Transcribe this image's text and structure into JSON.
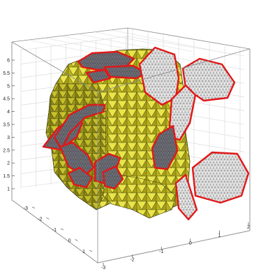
{
  "figure": {
    "colors": {
      "background": "#ffffff",
      "box_edge": "#8a8a8a",
      "grid": "#d6d6d6",
      "mesh_fill_light": "#e6e23a",
      "mesh_fill_mid": "#cfc72a",
      "mesh_fill_dark": "#8f8a17",
      "mesh_edge": "#3a3a10",
      "grain_fill_light": "#eeeeee",
      "grain_fill_dark": "#6a6a72",
      "grain_edge": "#e01818",
      "grain_inner_edge": "#4a4a4a"
    },
    "z_ticks": [
      "1",
      "1.5",
      "2",
      "2.5",
      "3",
      "3.5",
      "4",
      "4.5",
      "5",
      "5.5",
      "6"
    ],
    "y_ticks": [
      "-3",
      "-2",
      "-1",
      "0",
      "1"
    ],
    "x_ticks": [
      "-3",
      "-2",
      "-1",
      "0",
      "1",
      "2"
    ]
  }
}
